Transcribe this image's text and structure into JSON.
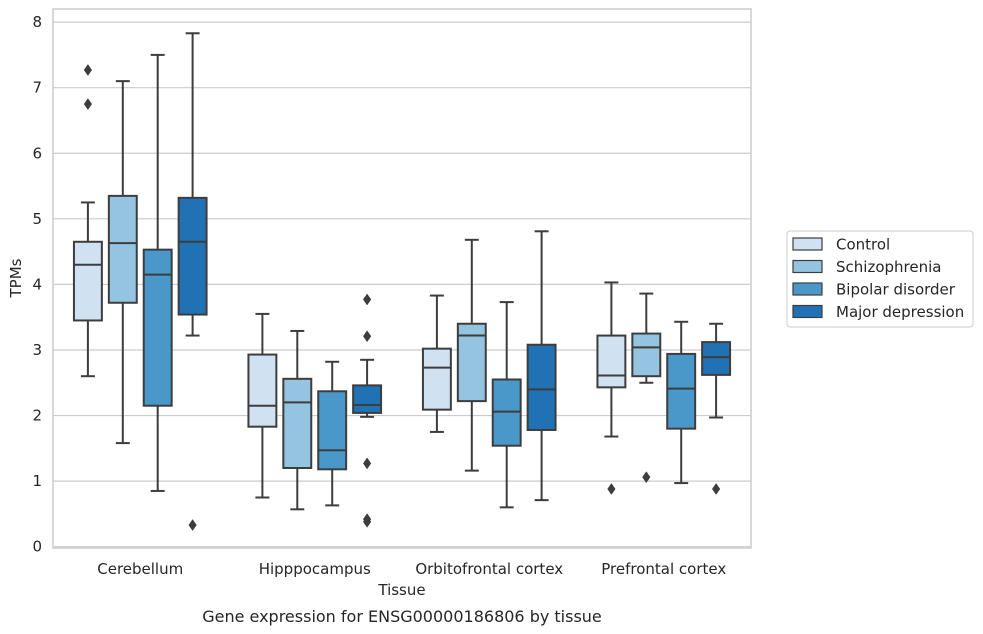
{
  "chart_data": {
    "type": "box",
    "title": "",
    "caption": "Gene expression for ENSG00000186806 by tissue",
    "xlabel": "Tissue",
    "ylabel": "TPMs",
    "ylim": [
      -0.02,
      8.2
    ],
    "yticks": [
      0,
      1,
      2,
      3,
      4,
      5,
      6,
      7,
      8
    ],
    "grid": "horizontal",
    "legend_position": "right",
    "categories": [
      "Cerebellum",
      "Hipppocampus",
      "Orbitofrontal cortex",
      "Prefrontal cortex"
    ],
    "series": [
      {
        "name": "Control",
        "color": "#d0e1f2",
        "boxes": [
          {
            "whislo": 2.6,
            "q1": 3.45,
            "med": 4.3,
            "q3": 4.65,
            "whishi": 5.25,
            "fliers": [
              6.75,
              7.27
            ]
          },
          {
            "whislo": 0.75,
            "q1": 1.83,
            "med": 2.15,
            "q3": 2.93,
            "whishi": 3.55,
            "fliers": []
          },
          {
            "whislo": 1.75,
            "q1": 2.09,
            "med": 2.73,
            "q3": 3.02,
            "whishi": 3.83,
            "fliers": []
          },
          {
            "whislo": 1.68,
            "q1": 2.43,
            "med": 2.61,
            "q3": 3.22,
            "whishi": 4.03,
            "fliers": [
              0.88
            ]
          }
        ]
      },
      {
        "name": "Schizophrenia",
        "color": "#94c4df",
        "boxes": [
          {
            "whislo": 1.58,
            "q1": 3.72,
            "med": 4.63,
            "q3": 5.35,
            "whishi": 7.1,
            "fliers": []
          },
          {
            "whislo": 0.57,
            "q1": 1.2,
            "med": 2.2,
            "q3": 2.56,
            "whishi": 3.29,
            "fliers": []
          },
          {
            "whislo": 1.16,
            "q1": 2.22,
            "med": 3.22,
            "q3": 3.4,
            "whishi": 4.68,
            "fliers": []
          },
          {
            "whislo": 2.5,
            "q1": 2.6,
            "med": 3.04,
            "q3": 3.25,
            "whishi": 3.86,
            "fliers": [
              1.06
            ]
          }
        ]
      },
      {
        "name": "Bipolar disorder",
        "color": "#4a98c9",
        "boxes": [
          {
            "whislo": 0.85,
            "q1": 2.15,
            "med": 4.15,
            "q3": 4.53,
            "whishi": 7.5,
            "fliers": []
          },
          {
            "whislo": 0.63,
            "q1": 1.18,
            "med": 1.47,
            "q3": 2.37,
            "whishi": 2.82,
            "fliers": []
          },
          {
            "whislo": 0.6,
            "q1": 1.54,
            "med": 2.06,
            "q3": 2.55,
            "whishi": 3.73,
            "fliers": []
          },
          {
            "whislo": 0.97,
            "q1": 1.8,
            "med": 2.41,
            "q3": 2.94,
            "whishi": 3.43,
            "fliers": []
          }
        ]
      },
      {
        "name": "Major depression",
        "color": "#2171b5",
        "boxes": [
          {
            "whislo": 3.22,
            "q1": 3.54,
            "med": 4.65,
            "q3": 5.32,
            "whishi": 7.83,
            "fliers": [
              0.33
            ]
          },
          {
            "whislo": 1.98,
            "q1": 2.04,
            "med": 2.16,
            "q3": 2.46,
            "whishi": 2.85,
            "fliers": [
              0.38,
              0.42,
              1.27,
              3.21,
              3.77
            ]
          },
          {
            "whislo": 0.71,
            "q1": 1.78,
            "med": 2.4,
            "q3": 3.08,
            "whishi": 4.81,
            "fliers": []
          },
          {
            "whislo": 1.97,
            "q1": 2.62,
            "med": 2.89,
            "q3": 3.12,
            "whishi": 3.4,
            "fliers": [
              0.88
            ]
          }
        ]
      }
    ]
  }
}
